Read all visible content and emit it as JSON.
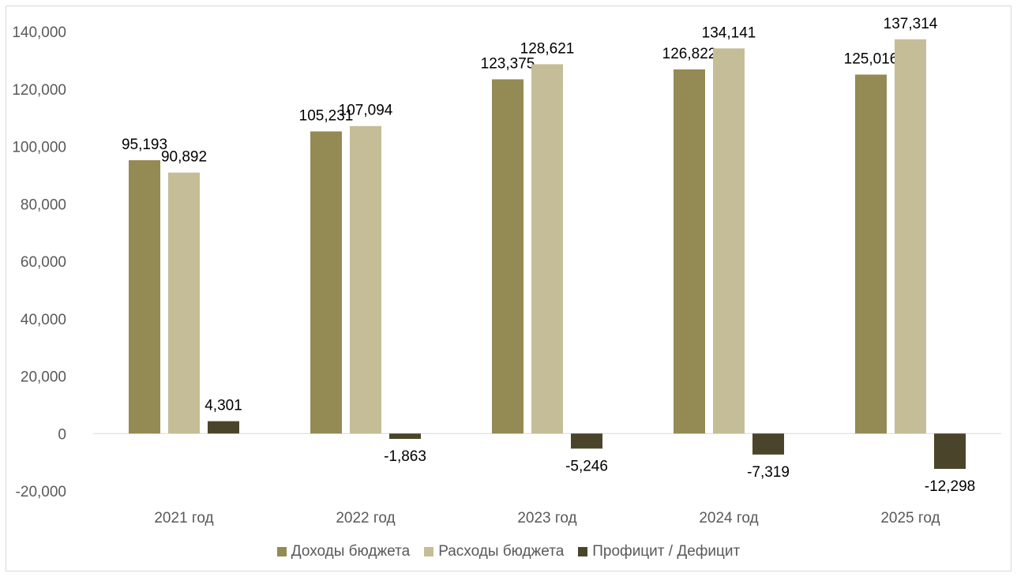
{
  "chart_data": {
    "type": "bar",
    "categories": [
      "2021 год",
      "2022 год",
      "2023 год",
      "2024 год",
      "2025 год"
    ],
    "series": [
      {
        "name": "Доходы бюджета",
        "values": [
          95193,
          105231,
          123375,
          126822,
          125016
        ],
        "color": "#948a54",
        "labels": [
          "95,193",
          "105,231",
          "123,375",
          "126,822",
          "125,016"
        ]
      },
      {
        "name": "Расходы бюджета",
        "values": [
          90892,
          107094,
          128621,
          134141,
          137314
        ],
        "color": "#c4bd97",
        "labels": [
          "90,892",
          "107,094",
          "128,621",
          "134,141",
          "137,314"
        ]
      },
      {
        "name": "Профицит / Дефицит",
        "values": [
          4301,
          -1863,
          -5246,
          -7319,
          -12298
        ],
        "color": "#4a452a",
        "labels": [
          "4,301",
          "-1,863",
          "-5,246",
          "-7,319",
          "-12,298"
        ]
      }
    ],
    "ylim": [
      -20000,
      140000
    ],
    "yticks": [
      -20000,
      0,
      20000,
      40000,
      60000,
      80000,
      100000,
      120000,
      140000
    ],
    "ytick_labels": [
      "-20,000",
      "0",
      "20,000",
      "40,000",
      "60,000",
      "80,000",
      "100,000",
      "120,000",
      "140,000"
    ],
    "grid": false,
    "legend_position": "bottom",
    "title": "",
    "xlabel": "",
    "ylabel": ""
  }
}
